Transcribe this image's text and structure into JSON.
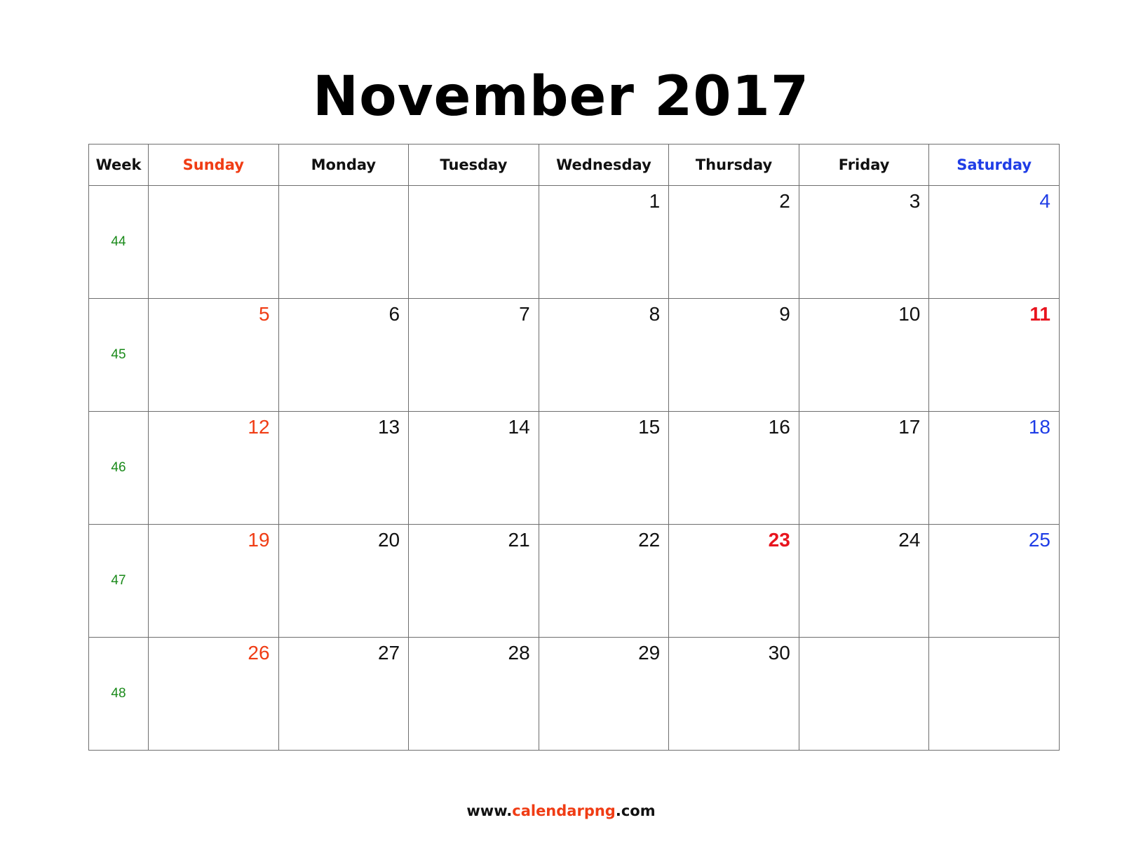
{
  "title": "November 2017",
  "header": {
    "week": "Week",
    "days": [
      "Sunday",
      "Monday",
      "Tuesday",
      "Wednesday",
      "Thursday",
      "Friday",
      "Saturday"
    ]
  },
  "colors": {
    "sunday": "#f03c14",
    "saturday": "#1f3de6",
    "holiday": "#e8141e",
    "week_number": "#1a8a1a",
    "grid": "#6e6e6e"
  },
  "weeks": [
    {
      "week": "44",
      "days": [
        {
          "d": ""
        },
        {
          "d": ""
        },
        {
          "d": ""
        },
        {
          "d": "1"
        },
        {
          "d": "2"
        },
        {
          "d": "3"
        },
        {
          "d": "4",
          "type": "sat"
        }
      ]
    },
    {
      "week": "45",
      "days": [
        {
          "d": "5",
          "type": "sun"
        },
        {
          "d": "6"
        },
        {
          "d": "7"
        },
        {
          "d": "8"
        },
        {
          "d": "9"
        },
        {
          "d": "10"
        },
        {
          "d": "11",
          "type": "holiday"
        }
      ]
    },
    {
      "week": "46",
      "days": [
        {
          "d": "12",
          "type": "sun"
        },
        {
          "d": "13"
        },
        {
          "d": "14"
        },
        {
          "d": "15"
        },
        {
          "d": "16"
        },
        {
          "d": "17"
        },
        {
          "d": "18",
          "type": "sat"
        }
      ]
    },
    {
      "week": "47",
      "days": [
        {
          "d": "19",
          "type": "sun"
        },
        {
          "d": "20"
        },
        {
          "d": "21"
        },
        {
          "d": "22"
        },
        {
          "d": "23",
          "type": "holiday"
        },
        {
          "d": "24"
        },
        {
          "d": "25",
          "type": "sat"
        }
      ]
    },
    {
      "week": "48",
      "days": [
        {
          "d": "26",
          "type": "sun"
        },
        {
          "d": "27"
        },
        {
          "d": "28"
        },
        {
          "d": "29"
        },
        {
          "d": "30"
        },
        {
          "d": ""
        },
        {
          "d": ""
        }
      ]
    }
  ],
  "footer": {
    "prefix": "www.",
    "brand": "calendarpng",
    "suffix": ".com"
  }
}
